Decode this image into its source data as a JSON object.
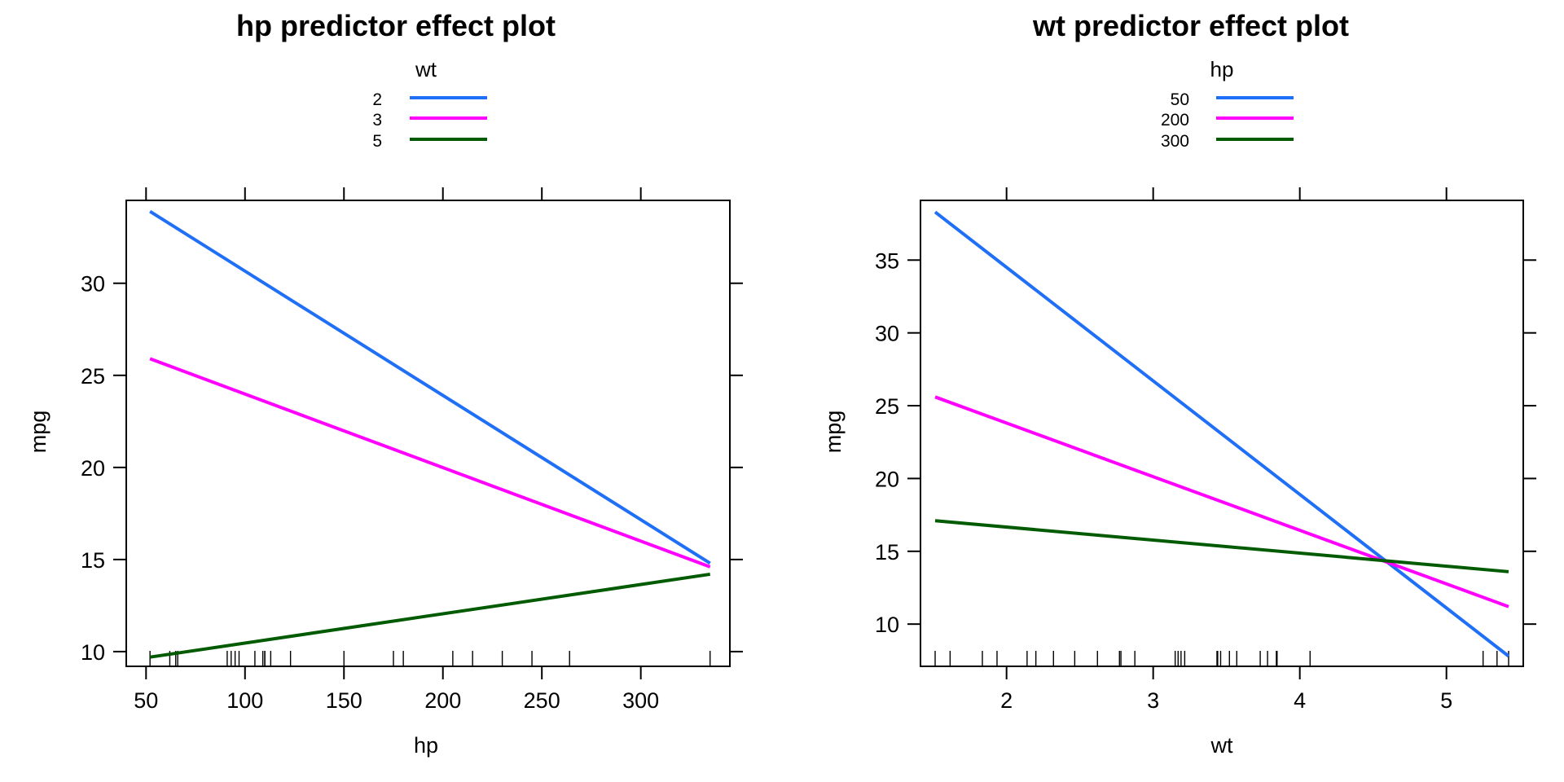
{
  "chart_data": [
    {
      "type": "line",
      "title": "hp predictor effect plot",
      "xlabel": "hp",
      "ylabel": "mpg",
      "xlim": [
        40,
        345
      ],
      "ylim": [
        9.2,
        34.5
      ],
      "xticks": [
        50,
        100,
        150,
        200,
        250,
        300
      ],
      "yticks": [
        10,
        15,
        20,
        25,
        30
      ],
      "legend": {
        "title": "wt",
        "placement": "top"
      },
      "series": [
        {
          "name": "2",
          "color": "#1f6ff7",
          "x": [
            52,
            335
          ],
          "y": [
            33.9,
            14.8
          ]
        },
        {
          "name": "3",
          "color": "#ff00ff",
          "x": [
            52,
            335
          ],
          "y": [
            25.9,
            14.6
          ]
        },
        {
          "name": "5",
          "color": "#005a00",
          "x": [
            52,
            335
          ],
          "y": [
            9.7,
            14.2
          ]
        }
      ],
      "rug": [
        52,
        62,
        65,
        66,
        91,
        93,
        95,
        97,
        105,
        109,
        110,
        110,
        113,
        123,
        150,
        175,
        180,
        205,
        215,
        230,
        245,
        264,
        335
      ]
    },
    {
      "type": "line",
      "title": "wt predictor effect plot",
      "xlabel": "wt",
      "ylabel": "mpg",
      "xlim": [
        1.413,
        5.524
      ],
      "ylim": [
        7.1,
        39.1
      ],
      "xticks": [
        2,
        3,
        4,
        5
      ],
      "yticks": [
        10,
        15,
        20,
        25,
        30,
        35
      ],
      "legend": {
        "title": "hp",
        "placement": "top"
      },
      "series": [
        {
          "name": "50",
          "color": "#1f6ff7",
          "x": [
            1.513,
            5.424
          ],
          "y": [
            38.3,
            7.8
          ]
        },
        {
          "name": "200",
          "color": "#ff00ff",
          "x": [
            1.513,
            5.424
          ],
          "y": [
            25.6,
            11.2
          ]
        },
        {
          "name": "300",
          "color": "#005a00",
          "x": [
            1.513,
            5.424
          ],
          "y": [
            17.1,
            13.6
          ]
        }
      ],
      "rug": [
        1.513,
        1.615,
        1.835,
        1.935,
        2.14,
        2.2,
        2.32,
        2.465,
        2.62,
        2.77,
        2.78,
        2.875,
        3.15,
        3.17,
        3.19,
        3.215,
        3.435,
        3.44,
        3.46,
        3.52,
        3.57,
        3.73,
        3.78,
        3.84,
        3.845,
        4.07,
        5.25,
        5.345,
        5.424
      ]
    }
  ]
}
